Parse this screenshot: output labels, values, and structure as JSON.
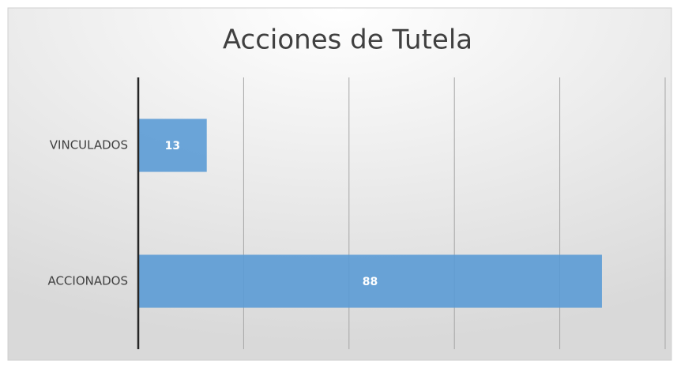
{
  "chart_data": {
    "type": "bar",
    "orientation": "horizontal",
    "title": "Acciones de Tutela",
    "categories": [
      "VINCULADOS",
      "ACCIONADOS"
    ],
    "values": [
      13,
      88
    ],
    "color": "#5b9bd5",
    "xlim": [
      0,
      100
    ],
    "xticks": [
      0,
      20,
      40,
      60,
      80,
      100
    ],
    "grid": true
  }
}
